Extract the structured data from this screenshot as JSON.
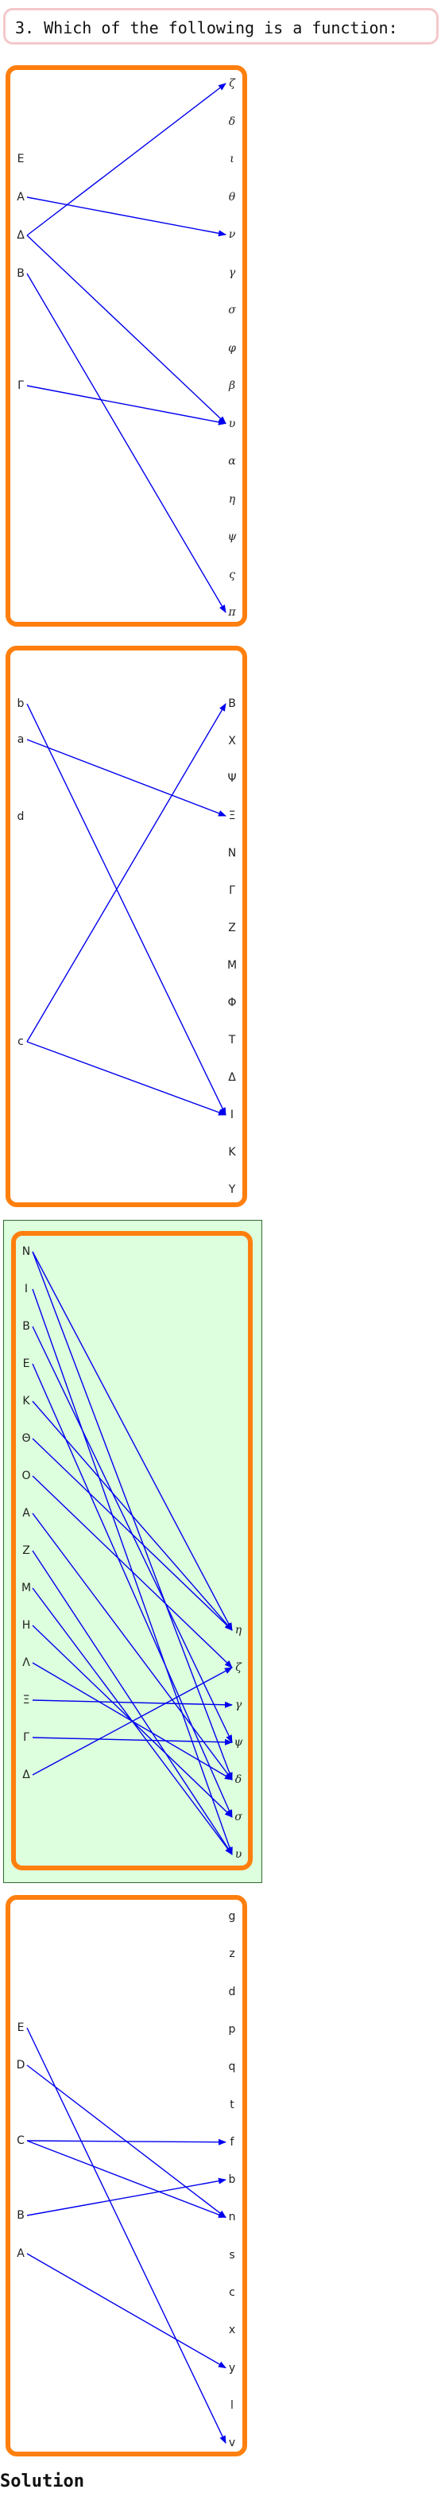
{
  "question": {
    "text": "3. Which of the following is a function:"
  },
  "solution_label": "Solution",
  "colors": {
    "panel_border": "#ff7f0e",
    "arrow": "#0000ee",
    "highlight_bg": "#ddffdd",
    "banner_border": "#f4c8cb"
  },
  "diagrams": [
    {
      "id": "panel-1",
      "highlighted": false,
      "left": [
        "E",
        "A",
        "Δ",
        "B",
        "Γ"
      ],
      "right": [
        "ζ",
        "δ",
        "ι",
        "θ",
        "ν",
        "γ",
        "σ",
        "φ",
        "β",
        "υ",
        "α",
        "η",
        "ψ",
        "ς",
        "π"
      ],
      "right_italic": true,
      "edges": [
        [
          "A",
          "ν"
        ],
        [
          "Δ",
          "ζ"
        ],
        [
          "Δ",
          "υ"
        ],
        [
          "B",
          "π"
        ],
        [
          "Γ",
          "υ"
        ]
      ]
    },
    {
      "id": "panel-2",
      "highlighted": false,
      "left": [
        "b",
        "a",
        "d",
        "c"
      ],
      "right": [
        "B",
        "X",
        "Ψ",
        "Ξ",
        "N",
        "Γ",
        "Z",
        "M",
        "Φ",
        "T",
        "Δ",
        "I",
        "K",
        "Y"
      ],
      "right_italic": false,
      "edges": [
        [
          "b",
          "I"
        ],
        [
          "a",
          "Ξ"
        ],
        [
          "c",
          "B"
        ],
        [
          "c",
          "I"
        ]
      ]
    },
    {
      "id": "panel-3",
      "highlighted": true,
      "left": [
        "N",
        "I",
        "B",
        "E",
        "K",
        "Θ",
        "O",
        "A",
        "Z",
        "M",
        "H",
        "Λ",
        "Ξ",
        "Γ",
        "Δ"
      ],
      "right": [
        "η",
        "ζ",
        "γ",
        "ψ",
        "δ",
        "σ",
        "υ"
      ],
      "right_italic": true,
      "edges": [
        [
          "N",
          "η"
        ],
        [
          "N",
          "δ"
        ],
        [
          "I",
          "υ"
        ],
        [
          "B",
          "ψ"
        ],
        [
          "E",
          "σ"
        ],
        [
          "K",
          "η"
        ],
        [
          "Θ",
          "η"
        ],
        [
          "O",
          "ζ"
        ],
        [
          "A",
          "δ"
        ],
        [
          "Z",
          "υ"
        ],
        [
          "M",
          "υ"
        ],
        [
          "H",
          "σ"
        ],
        [
          "Λ",
          "δ"
        ],
        [
          "Ξ",
          "γ"
        ],
        [
          "Γ",
          "ψ"
        ],
        [
          "Δ",
          "ζ"
        ]
      ]
    },
    {
      "id": "panel-4",
      "highlighted": false,
      "left": [
        "E",
        "D",
        "C",
        "B",
        "A"
      ],
      "right": [
        "g",
        "z",
        "d",
        "p",
        "q",
        "t",
        "f",
        "b",
        "n",
        "s",
        "c",
        "x",
        "y",
        "l",
        "v"
      ],
      "right_italic": false,
      "edges": [
        [
          "E",
          "v"
        ],
        [
          "D",
          "n"
        ],
        [
          "C",
          "f"
        ],
        [
          "C",
          "n"
        ],
        [
          "B",
          "b"
        ],
        [
          "A",
          "y"
        ]
      ]
    }
  ]
}
